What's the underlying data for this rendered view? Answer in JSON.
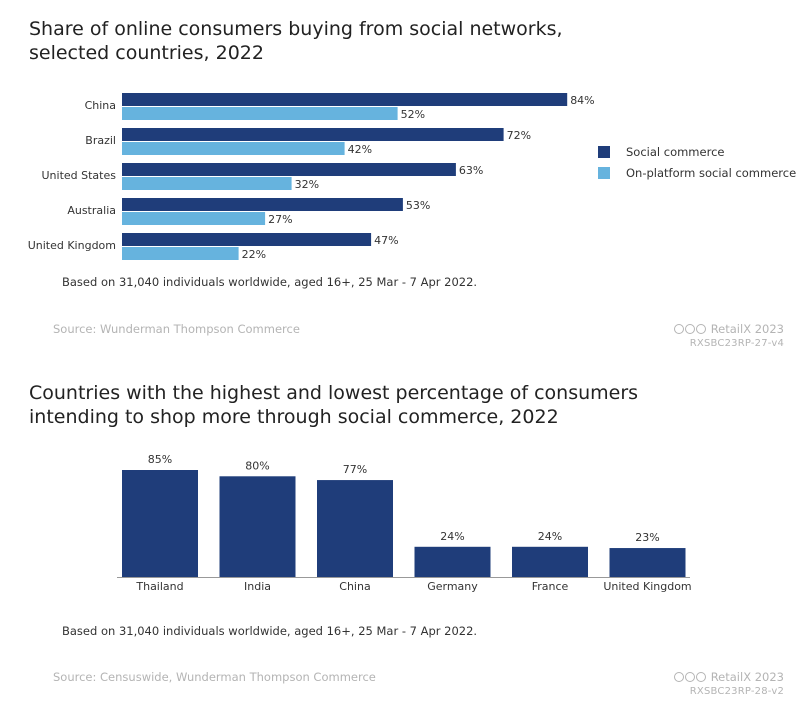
{
  "colors": {
    "primary": "#1f3d7a",
    "secondary": "#66b3de"
  },
  "chart1": {
    "title_line1": "Share of online consumers buying from social networks,",
    "title_line2": "selected countries, 2022",
    "note": "Based on 31,040 individuals worldwide, aged 16+, 25 Mar - 7 Apr 2022.",
    "source": "Source: Wunderman Thompson Commerce",
    "brand": "RetailX 2023",
    "code": "RXSBC23RP-27-v4"
  },
  "chart2": {
    "title_line1": "Countries with the highest and lowest percentage of consumers",
    "title_line2": "intending to shop more through social commerce, 2022",
    "note": "Based on 31,040 individuals worldwide, aged 16+, 25 Mar - 7 Apr 2022.",
    "source": "Source: Censuswide, Wunderman Thompson Commerce",
    "brand": "RetailX 2023",
    "code": "RXSBC23RP-28-v2"
  },
  "chart_data": [
    {
      "type": "bar",
      "orientation": "horizontal",
      "title": "Share of online consumers buying from social networks, selected countries, 2022",
      "categories": [
        "China",
        "Brazil",
        "United States",
        "Australia",
        "United Kingdom"
      ],
      "series": [
        {
          "name": "Social commerce",
          "values": [
            84,
            72,
            63,
            53,
            47
          ]
        },
        {
          "name": "On-platform social commerce",
          "values": [
            52,
            42,
            32,
            27,
            22
          ]
        }
      ],
      "unit": "%",
      "xlim": [
        0,
        100
      ],
      "legend": "right"
    },
    {
      "type": "bar",
      "orientation": "vertical",
      "title": "Countries with the highest and lowest percentage of consumers intending to shop more through social commerce, 2022",
      "categories": [
        "Thailand",
        "India",
        "China",
        "Germany",
        "France",
        "United Kingdom"
      ],
      "values": [
        85,
        80,
        77,
        24,
        24,
        23
      ],
      "unit": "%",
      "ylim": [
        0,
        100
      ]
    }
  ]
}
